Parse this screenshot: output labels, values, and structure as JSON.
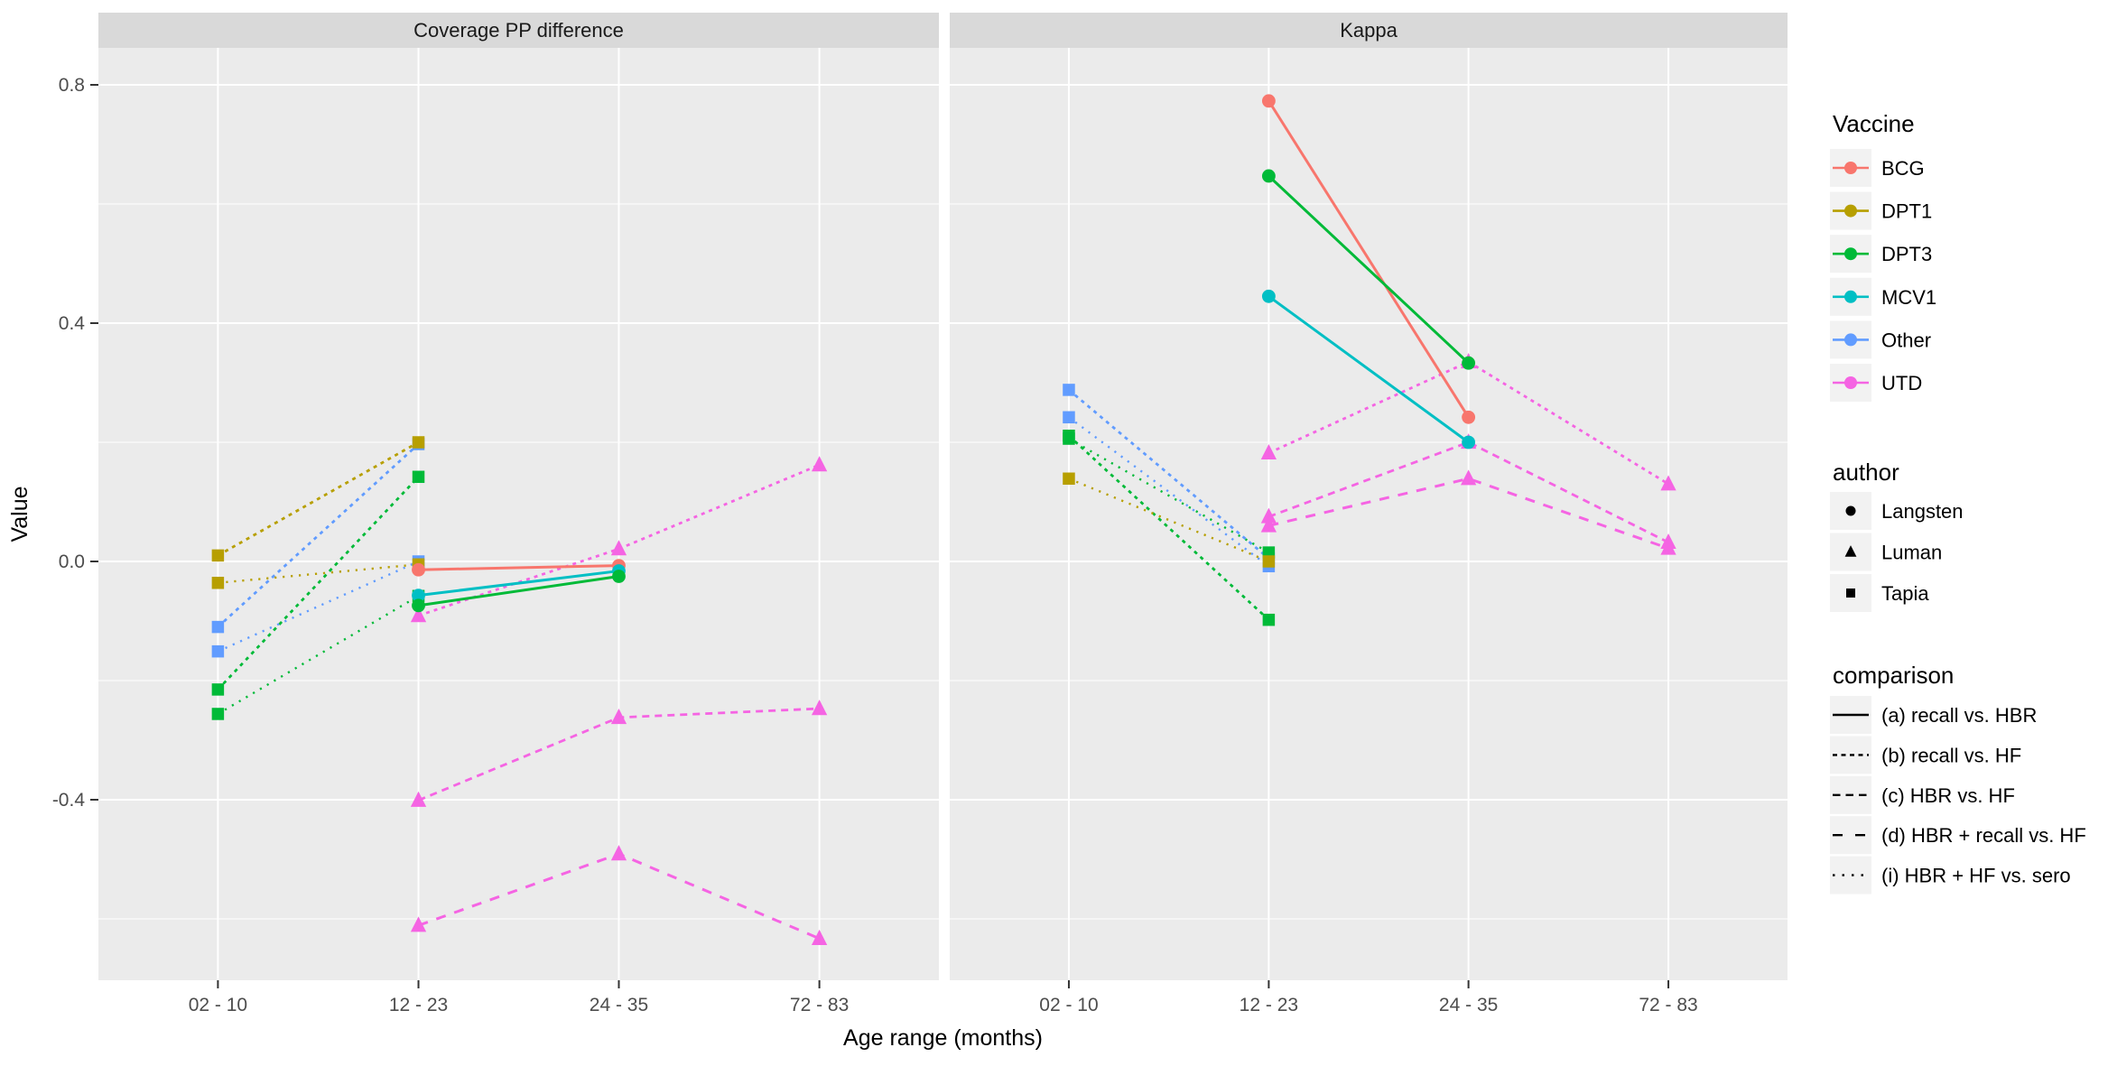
{
  "chart_data": {
    "type": "line",
    "title": "",
    "xlabel": "Age range (months)",
    "ylabel": "Value",
    "x_categories": [
      "02 - 10",
      "12 - 23",
      "24 - 35",
      "72 - 83"
    ],
    "y_major_ticks": [
      0.8,
      0.4,
      0.0,
      -0.4
    ],
    "y_tick_labels": [
      "0.8",
      "0.4",
      "0.0",
      "-0.4"
    ],
    "y_minor_ticks": [
      0.6,
      0.2,
      -0.2,
      -0.6
    ],
    "ylim": [
      -0.704,
      0.862
    ],
    "grid": "white major and minor horizontal gridlines, white vertical category gridlines, gray panel background",
    "legend_position": "right",
    "vaccine_colors": {
      "BCG": "#F8766D",
      "DPT1": "#B79F00",
      "DPT3": "#00BA38",
      "MCV1": "#00BFC4",
      "Other": "#619CFF",
      "UTD": "#F564E3"
    },
    "author_shapes": {
      "Langsten": "circle",
      "Luman": "triangle",
      "Tapia": "square"
    },
    "comparison_linetypes": {
      "a": "solid",
      "b": "short-dash",
      "c": "dashed",
      "d": "long-dash",
      "i": "fine-dotted"
    },
    "facets": [
      {
        "title": "Coverage PP difference",
        "series": [
          {
            "vaccine": "Other",
            "author": "Tapia",
            "comparison": "b",
            "values": [
              {
                "x": "02 - 10",
                "y": -0.11
              },
              {
                "x": "12 - 23",
                "y": 0.197
              }
            ]
          },
          {
            "vaccine": "DPT1",
            "author": "Tapia",
            "comparison": "b",
            "values": [
              {
                "x": "02 - 10",
                "y": 0.01
              },
              {
                "x": "12 - 23",
                "y": 0.2
              }
            ]
          },
          {
            "vaccine": "DPT3",
            "author": "Tapia",
            "comparison": "b",
            "values": [
              {
                "x": "02 - 10",
                "y": -0.215
              },
              {
                "x": "12 - 23",
                "y": 0.142
              }
            ]
          },
          {
            "vaccine": "Other",
            "author": "Tapia",
            "comparison": "i",
            "values": [
              {
                "x": "02 - 10",
                "y": -0.151
              },
              {
                "x": "12 - 23",
                "y": 0.0
              }
            ]
          },
          {
            "vaccine": "DPT1",
            "author": "Tapia",
            "comparison": "i",
            "values": [
              {
                "x": "02 - 10",
                "y": -0.036
              },
              {
                "x": "12 - 23",
                "y": -0.005
              }
            ]
          },
          {
            "vaccine": "DPT3",
            "author": "Tapia",
            "comparison": "i",
            "values": [
              {
                "x": "02 - 10",
                "y": -0.256
              },
              {
                "x": "12 - 23",
                "y": -0.058
              }
            ]
          },
          {
            "vaccine": "UTD",
            "author": "Luman",
            "comparison": "b",
            "values": [
              {
                "x": "12 - 23",
                "y": -0.091
              },
              {
                "x": "24 - 35",
                "y": 0.021
              },
              {
                "x": "72 - 83",
                "y": 0.162
              }
            ]
          },
          {
            "vaccine": "UTD",
            "author": "Luman",
            "comparison": "c",
            "values": [
              {
                "x": "12 - 23",
                "y": -0.401
              },
              {
                "x": "24 - 35",
                "y": -0.262
              },
              {
                "x": "72 - 83",
                "y": -0.247
              }
            ]
          },
          {
            "vaccine": "UTD",
            "author": "Luman",
            "comparison": "d",
            "values": [
              {
                "x": "12 - 23",
                "y": -0.611
              },
              {
                "x": "24 - 35",
                "y": -0.491
              },
              {
                "x": "72 - 83",
                "y": -0.633
              }
            ]
          },
          {
            "vaccine": "BCG",
            "author": "Langsten",
            "comparison": "a",
            "values": [
              {
                "x": "12 - 23",
                "y": -0.014
              },
              {
                "x": "24 - 35",
                "y": -0.007
              }
            ]
          },
          {
            "vaccine": "MCV1",
            "author": "Langsten",
            "comparison": "a",
            "values": [
              {
                "x": "12 - 23",
                "y": -0.057
              },
              {
                "x": "24 - 35",
                "y": -0.016
              }
            ]
          },
          {
            "vaccine": "DPT3",
            "author": "Langsten",
            "comparison": "a",
            "values": [
              {
                "x": "12 - 23",
                "y": -0.074
              },
              {
                "x": "24 - 35",
                "y": -0.025
              }
            ]
          }
        ]
      },
      {
        "title": "Kappa",
        "series": [
          {
            "vaccine": "Other",
            "author": "Tapia",
            "comparison": "b",
            "values": [
              {
                "x": "02 - 10",
                "y": 0.288
              },
              {
                "x": "12 - 23",
                "y": 0.005
              }
            ]
          },
          {
            "vaccine": "Other",
            "author": "Tapia",
            "comparison": "i",
            "values": [
              {
                "x": "02 - 10",
                "y": 0.242
              },
              {
                "x": "12 - 23",
                "y": -0.008
              }
            ]
          },
          {
            "vaccine": "DPT3",
            "author": "Tapia",
            "comparison": "b",
            "values": [
              {
                "x": "02 - 10",
                "y": 0.211
              },
              {
                "x": "12 - 23",
                "y": -0.098
              }
            ]
          },
          {
            "vaccine": "DPT3",
            "author": "Tapia",
            "comparison": "i",
            "values": [
              {
                "x": "02 - 10",
                "y": 0.206
              },
              {
                "x": "12 - 23",
                "y": 0.015
              }
            ]
          },
          {
            "vaccine": "DPT1",
            "author": "Tapia",
            "comparison": "i",
            "values": [
              {
                "x": "02 - 10",
                "y": 0.139
              },
              {
                "x": "12 - 23",
                "y": 0.0
              }
            ]
          },
          {
            "vaccine": "UTD",
            "author": "Luman",
            "comparison": "b",
            "values": [
              {
                "x": "12 - 23",
                "y": 0.182
              },
              {
                "x": "24 - 35",
                "y": 0.335
              },
              {
                "x": "72 - 83",
                "y": 0.13
              }
            ]
          },
          {
            "vaccine": "UTD",
            "author": "Luman",
            "comparison": "c",
            "values": [
              {
                "x": "12 - 23",
                "y": 0.075
              },
              {
                "x": "24 - 35",
                "y": 0.2
              },
              {
                "x": "72 - 83",
                "y": 0.032
              }
            ]
          },
          {
            "vaccine": "UTD",
            "author": "Luman",
            "comparison": "d",
            "values": [
              {
                "x": "12 - 23",
                "y": 0.06
              },
              {
                "x": "24 - 35",
                "y": 0.139
              },
              {
                "x": "72 - 83",
                "y": 0.022
              }
            ]
          },
          {
            "vaccine": "BCG",
            "author": "Langsten",
            "comparison": "a",
            "values": [
              {
                "x": "12 - 23",
                "y": 0.773
              },
              {
                "x": "24 - 35",
                "y": 0.242
              }
            ]
          },
          {
            "vaccine": "DPT3",
            "author": "Langsten",
            "comparison": "a",
            "values": [
              {
                "x": "12 - 23",
                "y": 0.647
              },
              {
                "x": "24 - 35",
                "y": 0.333
              }
            ]
          },
          {
            "vaccine": "MCV1",
            "author": "Langsten",
            "comparison": "a",
            "values": [
              {
                "x": "12 - 23",
                "y": 0.445
              },
              {
                "x": "24 - 35",
                "y": 0.2
              }
            ]
          }
        ]
      }
    ]
  },
  "legend": {
    "vaccine": {
      "title": "Vaccine",
      "items": [
        {
          "label": "BCG",
          "color": "#F8766D"
        },
        {
          "label": "DPT1",
          "color": "#B79F00"
        },
        {
          "label": "DPT3",
          "color": "#00BA38"
        },
        {
          "label": "MCV1",
          "color": "#00BFC4"
        },
        {
          "label": "Other",
          "color": "#619CFF"
        },
        {
          "label": "UTD",
          "color": "#F564E3"
        }
      ]
    },
    "author": {
      "title": "author",
      "items": [
        {
          "label": "Langsten",
          "shape": "circle"
        },
        {
          "label": "Luman",
          "shape": "triangle"
        },
        {
          "label": "Tapia",
          "shape": "square"
        }
      ]
    },
    "comparison": {
      "title": "comparison",
      "items": [
        {
          "label": "(a) recall vs. HBR",
          "linetype": "a"
        },
        {
          "label": "(b) recall vs. HF",
          "linetype": "b"
        },
        {
          "label": "(c) HBR vs. HF",
          "linetype": "c"
        },
        {
          "label": "(d) HBR + recall vs. HF",
          "linetype": "d"
        },
        {
          "label": "(i) HBR + HF vs. sero",
          "linetype": "i"
        }
      ]
    }
  },
  "theme": {
    "panel_background": "#EBEBEB",
    "strip_background": "#D9D9D9",
    "strip_text_color": "#1A1A1A",
    "grid_color": "#FFFFFF",
    "tick_label_color": "#4D4D4D",
    "axis_title_color": "#000000",
    "legend_key_background": "#F2F2F2",
    "page_background": "#FFFFFF"
  }
}
